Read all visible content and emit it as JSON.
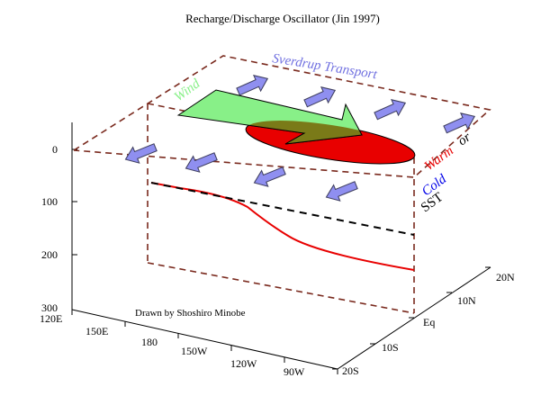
{
  "title": "Recharge/Discharge Oscillator (Jin 1997)",
  "credit": "Drawn by Shoshiro Minobe",
  "labels": {
    "sverdrup": "Sverdrup Transport",
    "wind": "Wind",
    "warm": "Warm",
    "or": "or",
    "cold": "Cold",
    "sst": "SST"
  },
  "axes": {
    "depth_ticks": [
      "0",
      "100",
      "200",
      "300"
    ],
    "longitude_ticks": [
      "120E",
      "150E",
      "180",
      "150W",
      "120W",
      "90W"
    ],
    "latitude_ticks": [
      "20S",
      "10S",
      "Eq",
      "10N",
      "20N"
    ]
  },
  "colors": {
    "frame": "#7a2a1e",
    "thermocline": "#e80000",
    "mean_thermocline": "#000000",
    "arrows": "#8f8ff0",
    "wind": "#88f088",
    "warm": "#e80000",
    "cold": "#0000e8",
    "sverdrup_label": "#7070e0"
  }
}
